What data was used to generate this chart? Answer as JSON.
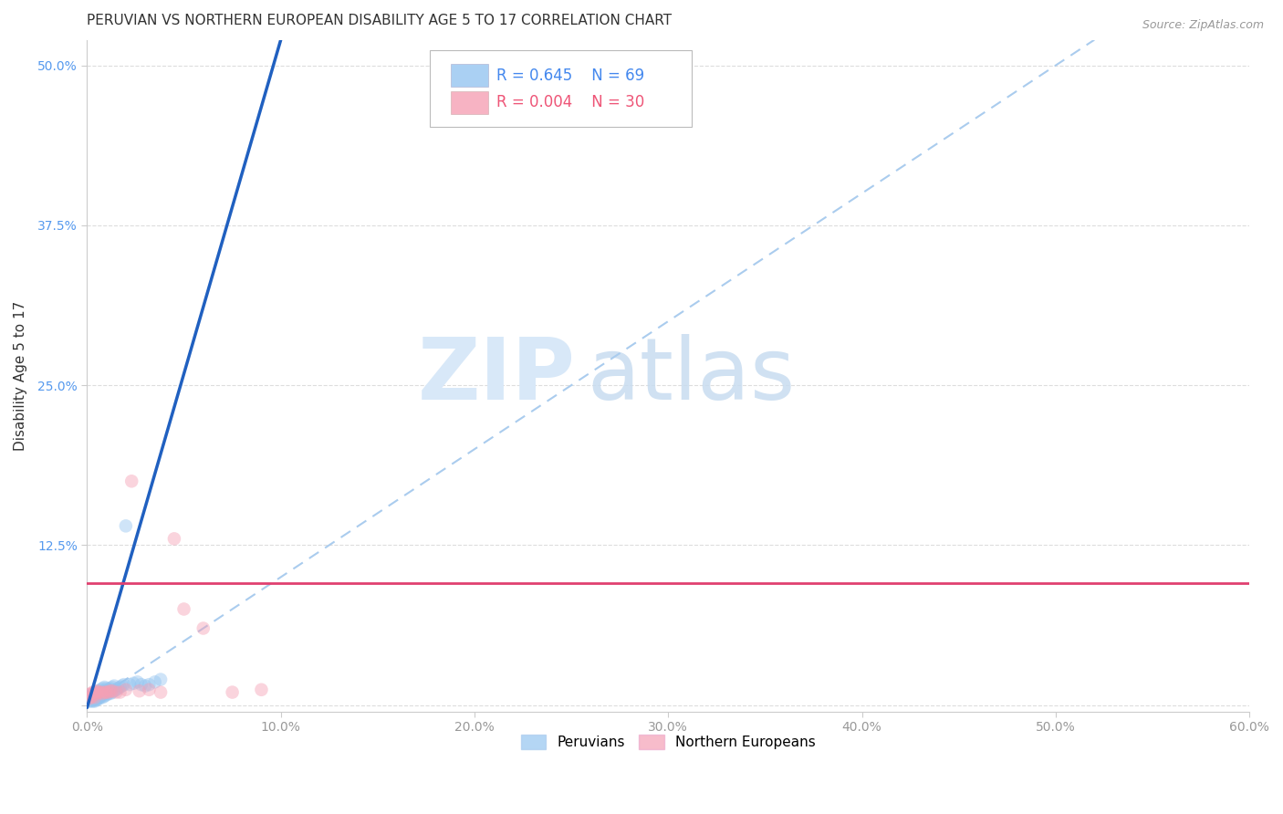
{
  "title": "PERUVIAN VS NORTHERN EUROPEAN DISABILITY AGE 5 TO 17 CORRELATION CHART",
  "source": "Source: ZipAtlas.com",
  "ylabel": "Disability Age 5 to 17",
  "xlim": [
    0.0,
    0.6
  ],
  "ylim": [
    -0.005,
    0.52
  ],
  "peruvian_color": "#95C5F0",
  "northern_color": "#F5A0B5",
  "peruvian_R": 0.645,
  "peruvian_N": 69,
  "northern_R": 0.004,
  "northern_N": 30,
  "peruvian_line_color": "#2060C0",
  "northern_line_color": "#E04070",
  "diagonal_color": "#AACCEE",
  "watermark_zip": "ZIP",
  "watermark_atlas": "atlas",
  "background_color": "#FFFFFF",
  "title_fontsize": 11,
  "axis_label_fontsize": 11,
  "tick_fontsize": 10,
  "marker_size": 110,
  "marker_alpha": 0.45,
  "peruvian_x": [
    0.001,
    0.001,
    0.001,
    0.001,
    0.002,
    0.002,
    0.002,
    0.002,
    0.002,
    0.002,
    0.003,
    0.003,
    0.003,
    0.003,
    0.003,
    0.003,
    0.004,
    0.004,
    0.004,
    0.004,
    0.004,
    0.004,
    0.005,
    0.005,
    0.005,
    0.005,
    0.005,
    0.006,
    0.006,
    0.006,
    0.006,
    0.006,
    0.007,
    0.007,
    0.007,
    0.007,
    0.008,
    0.008,
    0.008,
    0.008,
    0.009,
    0.009,
    0.009,
    0.009,
    0.01,
    0.01,
    0.01,
    0.011,
    0.011,
    0.012,
    0.012,
    0.013,
    0.013,
    0.014,
    0.014,
    0.015,
    0.016,
    0.017,
    0.018,
    0.019,
    0.02,
    0.022,
    0.024,
    0.026,
    0.028,
    0.03,
    0.032,
    0.035,
    0.038
  ],
  "peruvian_y": [
    0.003,
    0.004,
    0.005,
    0.006,
    0.003,
    0.004,
    0.005,
    0.006,
    0.007,
    0.008,
    0.003,
    0.004,
    0.005,
    0.006,
    0.007,
    0.008,
    0.003,
    0.004,
    0.005,
    0.006,
    0.007,
    0.009,
    0.004,
    0.005,
    0.006,
    0.008,
    0.01,
    0.005,
    0.006,
    0.007,
    0.009,
    0.011,
    0.006,
    0.007,
    0.009,
    0.012,
    0.006,
    0.008,
    0.01,
    0.013,
    0.007,
    0.009,
    0.011,
    0.014,
    0.008,
    0.01,
    0.013,
    0.009,
    0.012,
    0.009,
    0.013,
    0.01,
    0.014,
    0.011,
    0.015,
    0.012,
    0.013,
    0.014,
    0.015,
    0.016,
    0.14,
    0.016,
    0.017,
    0.018,
    0.016,
    0.015,
    0.016,
    0.018,
    0.02
  ],
  "northern_x": [
    0.001,
    0.001,
    0.002,
    0.002,
    0.003,
    0.003,
    0.004,
    0.004,
    0.005,
    0.005,
    0.006,
    0.007,
    0.008,
    0.009,
    0.01,
    0.011,
    0.012,
    0.013,
    0.015,
    0.017,
    0.02,
    0.023,
    0.027,
    0.032,
    0.038,
    0.045,
    0.05,
    0.06,
    0.075,
    0.09
  ],
  "northern_y": [
    0.005,
    0.008,
    0.006,
    0.009,
    0.007,
    0.01,
    0.006,
    0.01,
    0.009,
    0.011,
    0.01,
    0.01,
    0.009,
    0.01,
    0.01,
    0.01,
    0.011,
    0.011,
    0.01,
    0.01,
    0.012,
    0.175,
    0.011,
    0.012,
    0.01,
    0.13,
    0.075,
    0.06,
    0.01,
    0.012
  ],
  "peruvian_line_x": [
    0.0,
    0.1
  ],
  "peruvian_line_y": [
    -0.002,
    0.52
  ],
  "northern_line_y": [
    0.095,
    0.095
  ]
}
